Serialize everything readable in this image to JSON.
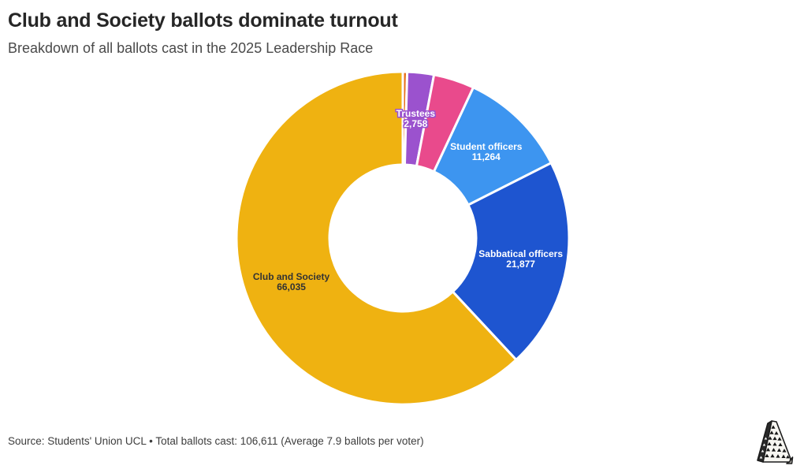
{
  "header": {
    "title": "Club and Society ballots dominate turnout",
    "subtitle": "Breakdown of all ballots cast in the 2025 Leadership Race"
  },
  "footer": {
    "source": "Source: Students' Union UCL • Total ballots cast: 106,611 (Average 7.9 ballots per voter)"
  },
  "icons": {
    "logo": "tower-sketch-logo"
  },
  "chart_data": {
    "type": "pie",
    "subtype": "donut",
    "title": "Club and Society ballots dominate turnout",
    "subtitle": "Breakdown of all ballots cast in the 2025 Leadership Race",
    "source": "Students' Union UCL",
    "total": 106611,
    "total_label": "106,611",
    "average_note": "Average 7.9 ballots per voter",
    "orientation": "segments start at 12 o'clock and proceed clockwise, smallest first",
    "legend": "none (direct segment labels)",
    "background_color": "#FFFFFF",
    "segments": [
      {
        "label": "",
        "value": 450,
        "color": "#E8711E",
        "note": "unlabeled thin sliver; value estimated from total"
      },
      {
        "label": "Trustees",
        "value": 2758,
        "value_label": "2,758",
        "color": "#9B52CE",
        "text_color": "#FFFFFF",
        "halo": "#9B52CE"
      },
      {
        "label": "",
        "value": 4227,
        "color": "#E94A8C",
        "note": "unlabeled segment; value estimated from total"
      },
      {
        "label": "Student officers",
        "value": 11264,
        "value_label": "11,264",
        "color": "#3D95F0",
        "text_color": "#FFFFFF"
      },
      {
        "label": "Sabbatical officers",
        "value": 21877,
        "value_label": "21,877",
        "color": "#1E55D0",
        "text_color": "#FFFFFF"
      },
      {
        "label": "Club and Society",
        "value": 66035,
        "value_label": "66,035",
        "color": "#EFB211",
        "text_color": "#333333"
      }
    ]
  }
}
